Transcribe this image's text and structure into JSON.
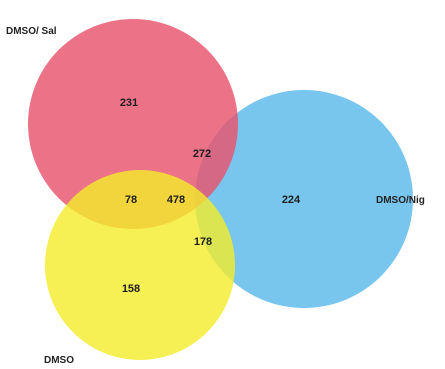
{
  "sets": [
    {
      "id": "dmso-sal",
      "label": "DMSO/ Sal",
      "color": "#e8536e"
    },
    {
      "id": "dmso-nig",
      "label": "DMSO/Nig",
      "color": "#5ab8ea"
    },
    {
      "id": "dmso",
      "label": "DMSO",
      "color": "#f4ec2a"
    }
  ],
  "regions": {
    "dmso_sal_only": "231",
    "dmso_nig_only": "224",
    "dmso_only": "158",
    "sal_nig": "272",
    "sal_dmso": "78",
    "nig_dmso": "178",
    "all_three": "478"
  }
}
